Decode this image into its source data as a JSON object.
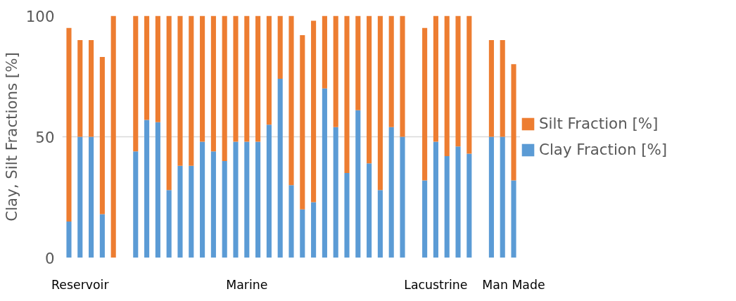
{
  "chart_data": {
    "type": "bar",
    "stacked": true,
    "ylabel": "Clay, Silt Fractions [%]",
    "categories": [
      null,
      "Reservoir",
      null,
      null,
      null,
      null,
      null,
      null,
      null,
      null,
      null,
      null,
      null,
      null,
      null,
      null,
      "Marine",
      null,
      null,
      null,
      null,
      null,
      null,
      null,
      null,
      null,
      null,
      null,
      null,
      null,
      null,
      null,
      null,
      "Lacustrine",
      null,
      null,
      null,
      null,
      null,
      null,
      "Man Made"
    ],
    "series": [
      {
        "name": "Clay Fraction [%]",
        "color": "#5b9bd5",
        "values": [
          15,
          50,
          50,
          18,
          0,
          null,
          44,
          57,
          56,
          28,
          38,
          38,
          48,
          44,
          40,
          48,
          48,
          48,
          55,
          74,
          30,
          20,
          23,
          70,
          54,
          35,
          61,
          39,
          28,
          54,
          50,
          null,
          32,
          48,
          42,
          46,
          43,
          null,
          50,
          50,
          32
        ]
      },
      {
        "name": "Silt Fraction [%]",
        "color": "#ed7d31",
        "values": [
          80,
          40,
          40,
          65,
          100,
          null,
          56,
          43,
          44,
          72,
          62,
          62,
          52,
          56,
          60,
          52,
          52,
          52,
          45,
          26,
          70,
          72,
          75,
          30,
          46,
          65,
          39,
          61,
          72,
          46,
          50,
          null,
          63,
          52,
          58,
          54,
          57,
          null,
          40,
          40,
          48
        ]
      }
    ],
    "ylim": [
      0,
      100
    ],
    "yticks": [
      0,
      50,
      100
    ],
    "grid": "y",
    "legend": "right"
  }
}
